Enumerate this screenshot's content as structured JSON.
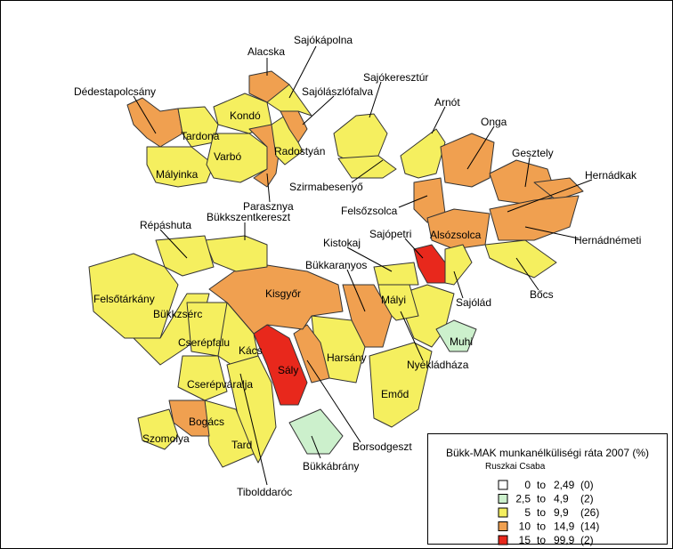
{
  "legend": {
    "title": "Bükk-MAK munkanélküliségi ráta 2007 (%)",
    "author": "Ruszkai Csaba",
    "to_word": "to",
    "classes": [
      {
        "from": "0",
        "to": "2,49",
        "count": "(0)",
        "color": "#ffffff"
      },
      {
        "from": "2,5",
        "to": "4,9",
        "count": "(2)",
        "color": "#ccf0cc"
      },
      {
        "from": "5",
        "to": "9,9",
        "count": "(26)",
        "color": "#f5ef5f"
      },
      {
        "from": "10",
        "to": "14,9",
        "count": "(14)",
        "color": "#f0a050"
      },
      {
        "from": "15",
        "to": "99,9",
        "count": "(2)",
        "color": "#e8281c"
      }
    ]
  },
  "regions": [
    {
      "name": "Dédestapolcsány",
      "color": "#f0a050"
    },
    {
      "name": "Tardona",
      "color": "#f5ef5f"
    },
    {
      "name": "Mályinka",
      "color": "#f5ef5f"
    },
    {
      "name": "Kondó",
      "color": "#f5ef5f"
    },
    {
      "name": "Alacska",
      "color": "#f0a050"
    },
    {
      "name": "Varbó",
      "color": "#f5ef5f"
    },
    {
      "name": "Parasznya",
      "color": "#f0a050"
    },
    {
      "name": "Radostyán",
      "color": "#f5ef5f"
    },
    {
      "name": "Sajólászlófalva",
      "color": "#f0a050"
    },
    {
      "name": "Sajókápolna",
      "color": "#f5ef5f"
    },
    {
      "name": "Sajókeresztúr",
      "color": "#f5ef5f"
    },
    {
      "name": "Szirmabesenyő",
      "color": "#f5ef5f"
    },
    {
      "name": "Arnót",
      "color": "#f5ef5f"
    },
    {
      "name": "Onga",
      "color": "#f0a050"
    },
    {
      "name": "Felsőzsolca",
      "color": "#f0a050"
    },
    {
      "name": "Gesztely",
      "color": "#f0a050"
    },
    {
      "name": "Hernádkak",
      "color": "#f0a050"
    },
    {
      "name": "Alsózsolca",
      "color": "#f0a050"
    },
    {
      "name": "Hernádnémeti",
      "color": "#f0a050"
    },
    {
      "name": "Sajópetri",
      "color": "#e8281c"
    },
    {
      "name": "Bőcs",
      "color": "#f5ef5f"
    },
    {
      "name": "Sajólád",
      "color": "#f5ef5f"
    },
    {
      "name": "Nyékládháza",
      "color": "#f5ef5f"
    },
    {
      "name": "Muhi",
      "color": "#ccf0cc"
    },
    {
      "name": "Mályi",
      "color": "#f5ef5f"
    },
    {
      "name": "Kistokaj",
      "color": "#f5ef5f"
    },
    {
      "name": "Bükkaranyos",
      "color": "#f0a050"
    },
    {
      "name": "Emőd",
      "color": "#f5ef5f"
    },
    {
      "name": "Harsány",
      "color": "#f5ef5f"
    },
    {
      "name": "Sály",
      "color": "#e8281c"
    },
    {
      "name": "Borsodgeszt",
      "color": "#f0a050"
    },
    {
      "name": "Bükkábrány",
      "color": "#ccf0cc"
    },
    {
      "name": "Kisgyőr",
      "color": "#f0a050"
    },
    {
      "name": "Bükkszentkereszt",
      "color": "#f5ef5f"
    },
    {
      "name": "Répáshuta",
      "color": "#f5ef5f"
    },
    {
      "name": "Felsőtárkány",
      "color": "#f5ef5f"
    },
    {
      "name": "Bükkzsérc",
      "color": "#f5ef5f"
    },
    {
      "name": "Cserépfalu",
      "color": "#f5ef5f"
    },
    {
      "name": "Kács",
      "color": "#f5ef5f"
    },
    {
      "name": "Cserépváralja",
      "color": "#f5ef5f"
    },
    {
      "name": "Tibolddaróc",
      "color": "#f5ef5f"
    },
    {
      "name": "Tard",
      "color": "#f5ef5f"
    },
    {
      "name": "Bogács",
      "color": "#f0a050"
    },
    {
      "name": "Szomolya",
      "color": "#f5ef5f"
    }
  ]
}
